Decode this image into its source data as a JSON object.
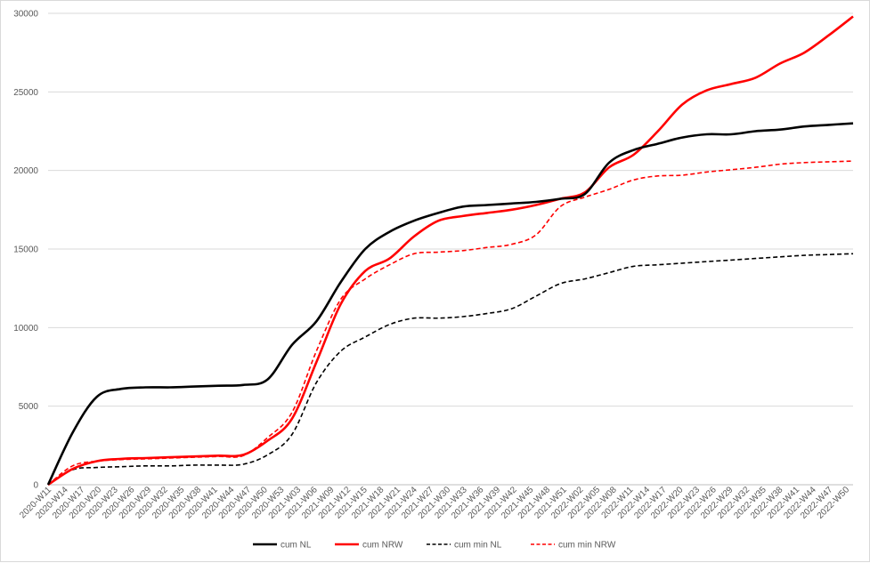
{
  "chart_data": {
    "type": "line",
    "title": "",
    "xlabel": "",
    "ylabel": "",
    "ylim": [
      0,
      30000
    ],
    "yticks": [
      0,
      5000,
      10000,
      15000,
      20000,
      25000,
      30000
    ],
    "grid": "horizontal",
    "legend_position": "bottom",
    "x_tick_labels": [
      "2020-W11",
      "2020-W14",
      "2020-W17",
      "2020-W20",
      "2020-W23",
      "2020-W26",
      "2020-W29",
      "2020-W32",
      "2020-W35",
      "2020-W38",
      "2020-W41",
      "2020-W44",
      "2020-W47",
      "2020-W50",
      "2020-W53",
      "2021-W03",
      "2021-W06",
      "2021-W09",
      "2021-W12",
      "2021-W15",
      "2021-W18",
      "2021-W21",
      "2021-W24",
      "2021-W27",
      "2021-W30",
      "2021-W33",
      "2021-W36",
      "2021-W39",
      "2021-W42",
      "2021-W45",
      "2021-W48",
      "2021-W51",
      "2022-W02",
      "2022-W05",
      "2022-W08",
      "2022-W11",
      "2022-W14",
      "2022-W17",
      "2022-W20",
      "2022-W23",
      "2022-W26",
      "2022-W29",
      "2022-W32",
      "2022-W35",
      "2022-W38",
      "2022-W41",
      "2022-W44",
      "2022-W47",
      "2022-W50"
    ],
    "series": [
      {
        "name": "cum NL",
        "color": "#000000",
        "dash": "solid",
        "values": [
          0,
          3300,
          5600,
          6100,
          6200,
          6200,
          6250,
          6300,
          6350,
          6700,
          8900,
          10400,
          12900,
          15000,
          16100,
          16800,
          17300,
          17700,
          17800,
          17900,
          18000,
          18200,
          18500,
          20500,
          21300,
          21700,
          22100,
          22300,
          22300,
          22500,
          22600,
          22800,
          22900,
          23000
        ]
      },
      {
        "name": "cum NRW",
        "color": "#ff0000",
        "dash": "solid",
        "values": [
          0,
          1000,
          1500,
          1650,
          1700,
          1750,
          1800,
          1850,
          1900,
          2800,
          4200,
          7800,
          11500,
          13600,
          14400,
          15800,
          16800,
          17100,
          17300,
          17500,
          17800,
          18200,
          18600,
          20200,
          21000,
          22500,
          24200,
          25100,
          25500,
          25900,
          26800,
          27500,
          28600,
          29800
        ]
      },
      {
        "name": "cum min NL",
        "color": "#000000",
        "dash": "dashed",
        "values": [
          0,
          950,
          1100,
          1150,
          1200,
          1200,
          1250,
          1250,
          1300,
          1900,
          3200,
          6500,
          8500,
          9400,
          10200,
          10600,
          10600,
          10700,
          10900,
          11200,
          12000,
          12800,
          13100,
          13500,
          13900,
          14000,
          14100,
          14200,
          14300,
          14400,
          14500,
          14600,
          14650,
          14700
        ]
      },
      {
        "name": "cum min NRW",
        "color": "#ff0000",
        "dash": "dashed",
        "values": [
          0,
          1200,
          1500,
          1600,
          1650,
          1700,
          1750,
          1800,
          1850,
          3000,
          4600,
          8500,
          11800,
          13100,
          14000,
          14700,
          14800,
          14900,
          15100,
          15300,
          15900,
          17700,
          18300,
          18800,
          19400,
          19650,
          19700,
          19900,
          20050,
          20200,
          20400,
          20500,
          20550,
          20600
        ]
      }
    ]
  }
}
